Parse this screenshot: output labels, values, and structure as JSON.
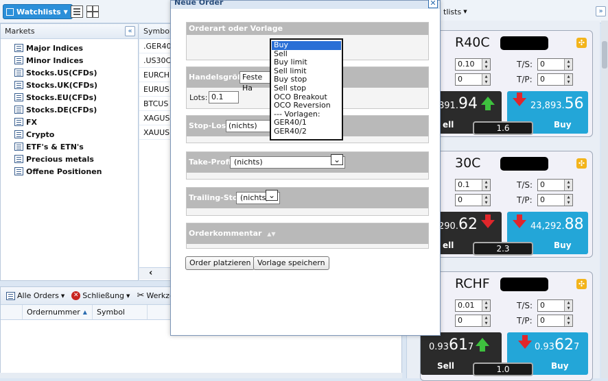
{
  "toolbar": {
    "watchlists_label": "Watchlists"
  },
  "markets": {
    "title": "Markets",
    "items": [
      "Major Indices",
      "Minor Indices",
      "Stocks.US(CFDs)",
      "Stocks.UK(CFDs)",
      "Stocks.EU(CFDs)",
      "Stocks.DE(CFDs)",
      "FX",
      "Crypto",
      "ETF's & ETN's",
      "Precious metals",
      "Offene Positionen"
    ]
  },
  "symbols": {
    "header": "Symbol",
    "rows": [
      ".GER40",
      ".US30C",
      "EURCH",
      "EURUS",
      "BTCUS",
      "XAGUS",
      "XAUUS"
    ]
  },
  "orders": {
    "alle_orders": "Alle Orders",
    "schliessung": "Schließung",
    "werkzeuge": "Werkzeu",
    "col_ordernummer": "Ordernummer",
    "col_symbol": "Symbol"
  },
  "watchlist_right": {
    "title": "tlists"
  },
  "cards": [
    {
      "name": "R40C",
      "lot": "0.10",
      "lot2": "0",
      "ts": "0",
      "tp": "0",
      "sell_pre": "891.",
      "sell_big": "94",
      "buy_pre": "23,893.",
      "buy_big": "56",
      "sell_label": "ell",
      "buy_label": "Buy",
      "spread": "1.6"
    },
    {
      "name": "30C",
      "lot": "0.1",
      "lot2": "0",
      "ts": "0",
      "tp": "0",
      "sell_pre": "290.",
      "sell_big": "62",
      "buy_pre": "44,292.",
      "buy_big": "88",
      "sell_label": "ell",
      "buy_label": "Buy",
      "spread": "2.3"
    },
    {
      "name": "RCHF",
      "lot": "0.01",
      "lot2": "0",
      "ts": "0",
      "tp": "0",
      "sell_pre": "0.93",
      "sell_big": "61",
      "sell_post": "7",
      "buy_pre": "0.93",
      "buy_big": "62",
      "buy_post": "7",
      "sell_label": "Sell",
      "buy_label": "Buy",
      "spread": "1.0"
    }
  ],
  "labels": {
    "ts": "T/S:",
    "tp": "T/P:"
  },
  "dialog": {
    "title": "Neue Order",
    "orderart_head": "Orderart oder Vorlage",
    "handelsgroesse_head": "Handelsgröße:",
    "handelsgroesse_value": "Feste Ha",
    "lots_label": "Lots:",
    "lots_value": "0.1",
    "stoploss_head": "Stop-Loss:",
    "stoploss_value": "(nichts)",
    "takeprofit_head": "Take-Profit:",
    "takeprofit_value": "(nichts)",
    "trailing_head": "Trailing-Stop:",
    "trailing_value": "(nichts)",
    "kommentar_head": "Orderkommentar",
    "place_button": "Order platzieren",
    "save_template_button": "Vorlage speichern",
    "order_types": [
      "Buy",
      "Sell",
      "Buy limit",
      "Sell limit",
      "Buy stop",
      "Sell stop",
      "OCO Breakout",
      "OCO Reversion",
      "--- Vorlagen:",
      "GER40/1",
      "GER40/2"
    ]
  }
}
